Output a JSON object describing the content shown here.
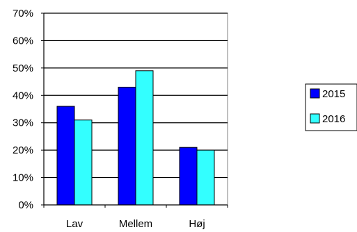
{
  "chart_data": {
    "type": "bar",
    "title": "",
    "xlabel": "",
    "ylabel": "",
    "categories": [
      "Lav",
      "Mellem",
      "Høj"
    ],
    "series": [
      {
        "name": "2015",
        "values": [
          36,
          43,
          21
        ],
        "color": "#0000ff"
      },
      {
        "name": "2016",
        "values": [
          31,
          49,
          20
        ],
        "color": "#33ffff"
      }
    ],
    "ylim": [
      0,
      70
    ],
    "yticks": [
      0,
      10,
      20,
      30,
      40,
      50,
      60,
      70
    ],
    "ytick_labels": [
      "0%",
      "10%",
      "20%",
      "30%",
      "40%",
      "50%",
      "60%",
      "70%"
    ],
    "grid": true,
    "legend_position": "right"
  }
}
